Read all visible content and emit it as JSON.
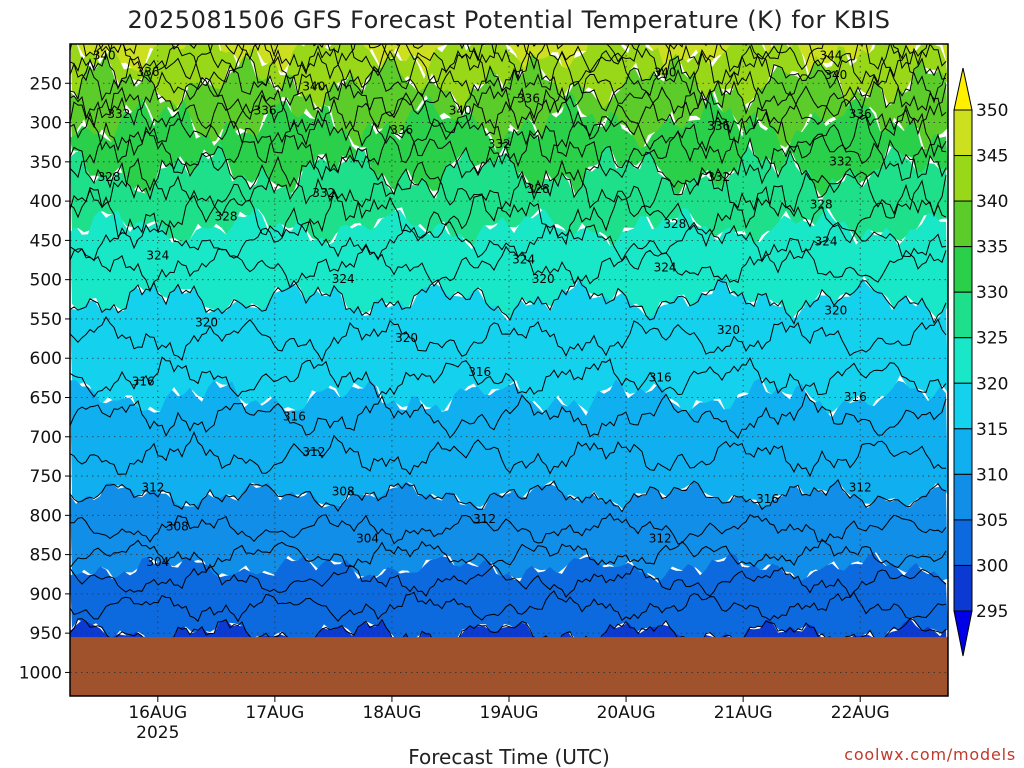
{
  "chart_data": {
    "type": "heatmap",
    "title": "2025081506 GFS Forecast Potential Temperature (K) for KBIS",
    "xlabel": "Forecast Time (UTC)",
    "ylabel": "",
    "credit": "coolwx.com/models",
    "x_ticks": [
      {
        "label": "16AUG",
        "sub": "2025",
        "hours": 18
      },
      {
        "label": "17AUG",
        "sub": "",
        "hours": 42
      },
      {
        "label": "18AUG",
        "sub": "",
        "hours": 66
      },
      {
        "label": "19AUG",
        "sub": "",
        "hours": 90
      },
      {
        "label": "20AUG",
        "sub": "",
        "hours": 114
      },
      {
        "label": "21AUG",
        "sub": "",
        "hours": 138
      },
      {
        "label": "22AUG",
        "sub": "",
        "hours": 162
      }
    ],
    "x_range_hours": [
      0,
      180
    ],
    "pressure_ticks": [
      250,
      300,
      350,
      400,
      450,
      500,
      550,
      600,
      650,
      700,
      750,
      800,
      850,
      900,
      950,
      1000
    ],
    "pressure_range": [
      200,
      1030
    ],
    "surface_pressure": 955,
    "colorbar": {
      "ticks": [
        350,
        345,
        340,
        335,
        330,
        325,
        320,
        315,
        310,
        305,
        300,
        295
      ],
      "colors": [
        "#fff000",
        "#cce020",
        "#99d818",
        "#5ccc2a",
        "#2ad04a",
        "#1ee08a",
        "#18e8c8",
        "#14d2ee",
        "#10b0f0",
        "#108ee8",
        "#0c6ade",
        "#0a3ad2",
        "#0000e8"
      ]
    },
    "theta_profile": {
      "pressure": [
        200,
        250,
        300,
        350,
        400,
        450,
        500,
        550,
        600,
        650,
        700,
        750,
        800,
        850,
        900,
        950
      ],
      "theta_k": [
        346,
        340,
        335,
        331,
        327,
        324,
        321,
        319,
        317,
        315,
        313,
        311,
        309,
        306,
        303,
        300
      ]
    },
    "contour_labels": [
      {
        "text": "340",
        "hours": 7,
        "p": 215
      },
      {
        "text": "336",
        "hours": 16,
        "p": 236
      },
      {
        "text": "332",
        "hours": 10,
        "p": 290
      },
      {
        "text": "328",
        "hours": 8,
        "p": 370
      },
      {
        "text": "328",
        "hours": 32,
        "p": 420
      },
      {
        "text": "324",
        "hours": 18,
        "p": 470
      },
      {
        "text": "320",
        "hours": 28,
        "p": 555
      },
      {
        "text": "316",
        "hours": 15,
        "p": 630
      },
      {
        "text": "312",
        "hours": 17,
        "p": 765
      },
      {
        "text": "308",
        "hours": 22,
        "p": 815
      },
      {
        "text": "304",
        "hours": 18,
        "p": 860
      },
      {
        "text": "336",
        "hours": 40,
        "p": 285
      },
      {
        "text": "340",
        "hours": 50,
        "p": 255
      },
      {
        "text": "332",
        "hours": 52,
        "p": 390
      },
      {
        "text": "324",
        "hours": 56,
        "p": 500
      },
      {
        "text": "316",
        "hours": 46,
        "p": 675
      },
      {
        "text": "312",
        "hours": 50,
        "p": 720
      },
      {
        "text": "308",
        "hours": 56,
        "p": 770
      },
      {
        "text": "304",
        "hours": 61,
        "p": 830
      },
      {
        "text": "336",
        "hours": 68,
        "p": 310
      },
      {
        "text": "340",
        "hours": 80,
        "p": 285
      },
      {
        "text": "336",
        "hours": 94,
        "p": 270
      },
      {
        "text": "332",
        "hours": 88,
        "p": 328
      },
      {
        "text": "328",
        "hours": 96,
        "p": 385
      },
      {
        "text": "320",
        "hours": 69,
        "p": 575
      },
      {
        "text": "324",
        "hours": 93,
        "p": 475
      },
      {
        "text": "320",
        "hours": 97,
        "p": 500
      },
      {
        "text": "316",
        "hours": 84,
        "p": 618
      },
      {
        "text": "312",
        "hours": 85,
        "p": 805
      },
      {
        "text": "340",
        "hours": 122,
        "p": 237
      },
      {
        "text": "336",
        "hours": 133,
        "p": 305
      },
      {
        "text": "332",
        "hours": 133,
        "p": 370
      },
      {
        "text": "328",
        "hours": 124,
        "p": 430
      },
      {
        "text": "324",
        "hours": 122,
        "p": 485
      },
      {
        "text": "320",
        "hours": 135,
        "p": 565
      },
      {
        "text": "316",
        "hours": 121,
        "p": 625
      },
      {
        "text": "312",
        "hours": 121,
        "p": 830
      },
      {
        "text": "316",
        "hours": 143,
        "p": 780
      },
      {
        "text": "344",
        "hours": 156,
        "p": 215
      },
      {
        "text": "340",
        "hours": 157,
        "p": 240
      },
      {
        "text": "336",
        "hours": 162,
        "p": 290
      },
      {
        "text": "332",
        "hours": 158,
        "p": 350
      },
      {
        "text": "328",
        "hours": 154,
        "p": 405
      },
      {
        "text": "324",
        "hours": 155,
        "p": 452
      },
      {
        "text": "320",
        "hours": 157,
        "p": 540
      },
      {
        "text": "316",
        "hours": 161,
        "p": 650
      },
      {
        "text": "312",
        "hours": 162,
        "p": 765
      }
    ]
  }
}
